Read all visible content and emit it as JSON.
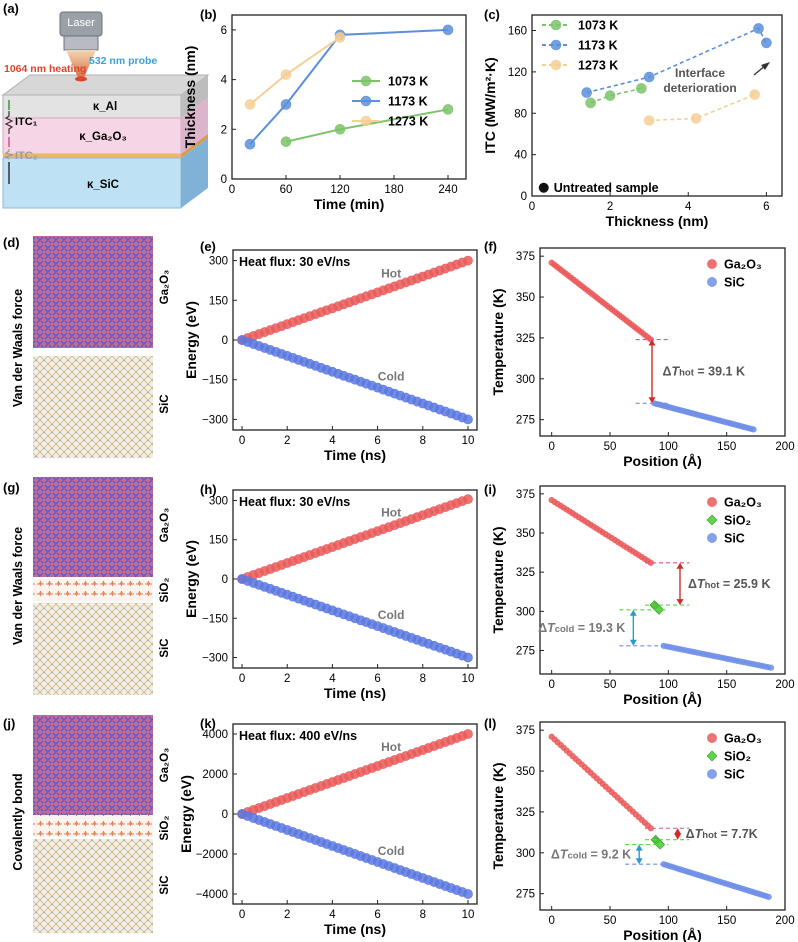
{
  "panels": {
    "a": {
      "tag": "(a)",
      "laser": "Laser",
      "heating": "1064 nm heating",
      "probe": "532 nm probe",
      "k_al": "κ_Al",
      "k_ga2o3": "κ_Ga₂O₃",
      "k_sic": "κ_SiC",
      "itc1": "ITC₁",
      "itc2": "ITC₂"
    },
    "d": {
      "tag": "(d)",
      "side": "Van der Waals force",
      "top": "Ga₂O₃",
      "bottom": "SiC"
    },
    "g": {
      "tag": "(g)",
      "side": "Van der Waals force",
      "top": "Ga₂O₃",
      "mid": "SiO₂",
      "bottom": "SiC"
    },
    "j": {
      "tag": "(j)",
      "side": "Covalently bond",
      "top": "Ga₂O₃",
      "mid": "SiO₂",
      "bottom": "SiC"
    },
    "b_tag": "(b)",
    "c_tag": "(c)",
    "e_tag": "(e)",
    "f_tag": "(f)",
    "h_tag": "(h)",
    "i_tag": "(i)",
    "k_tag": "(k)",
    "l_tag": "(l)"
  },
  "chart_data": [
    {
      "id": "b",
      "type": "line",
      "xlabel": "Time (min)",
      "ylabel": "Thickness (nm)",
      "xlim": [
        0,
        260
      ],
      "ylim": [
        0,
        6.6
      ],
      "xticks": [
        0,
        60,
        120,
        180,
        240
      ],
      "yticks": [
        0,
        2,
        4,
        6
      ],
      "legend": "center-right",
      "series": [
        {
          "name": "1073 K",
          "color": "#7cc36a",
          "x": [
            60,
            120,
            240
          ],
          "y": [
            1.5,
            2.0,
            2.8
          ]
        },
        {
          "name": "1173 K",
          "color": "#5b8fd9",
          "x": [
            20,
            60,
            120,
            240
          ],
          "y": [
            1.4,
            3.0,
            5.8,
            6.0
          ]
        },
        {
          "name": "1273 K",
          "color": "#f6cf97",
          "x": [
            20,
            60,
            120
          ],
          "y": [
            3.0,
            4.2,
            5.7
          ]
        }
      ]
    },
    {
      "id": "c",
      "type": "scatter",
      "xlabel": "Thickness (nm)",
      "ylabel": "ITC (MW/m²·K)",
      "xlim": [
        0,
        6.4
      ],
      "ylim": [
        0,
        175
      ],
      "xticks": [
        0,
        2,
        4,
        6
      ],
      "yticks": [
        0,
        40,
        80,
        120,
        160
      ],
      "legend": "top-left",
      "annotation": [
        "Interface",
        "deterioration"
      ],
      "untreated_label": "Untreated sample",
      "untreated_point": [
        0.3,
        8
      ],
      "series": [
        {
          "name": "1073 K",
          "color": "#7cc36a",
          "x": [
            1.5,
            2.0,
            2.8
          ],
          "y": [
            90,
            97,
            104
          ]
        },
        {
          "name": "1173 K",
          "color": "#5b8fd9",
          "x": [
            1.4,
            3.0,
            5.8,
            6.0
          ],
          "y": [
            100,
            115,
            162,
            148
          ]
        },
        {
          "name": "1273 K",
          "color": "#f6cf97",
          "x": [
            3.0,
            4.2,
            5.7
          ],
          "y": [
            73,
            75,
            98
          ]
        }
      ]
    },
    {
      "id": "e",
      "type": "scatter",
      "xlabel": "Time (ns)",
      "ylabel": "Energy (eV)",
      "xlim": [
        -0.4,
        10.4
      ],
      "ylim": [
        -340,
        340
      ],
      "xticks": [
        0,
        2,
        4,
        6,
        8,
        10
      ],
      "yticks": [
        -300,
        -150,
        0,
        150,
        300
      ],
      "title": "Heat flux: 30 eV/ns",
      "series": [
        {
          "name": "Hot",
          "color": "#ea5a5a",
          "x0": 0,
          "x1": 10,
          "y0": 0,
          "y1": 300,
          "n": 41
        },
        {
          "name": "Cold",
          "color": "#5b78e0",
          "x0": 0,
          "x1": 10,
          "y0": 0,
          "y1": -300,
          "n": 41
        }
      ]
    },
    {
      "id": "f",
      "type": "scatter",
      "xlabel": "Position (Å)",
      "ylabel": "Temperature (K)",
      "xlim": [
        -10,
        200
      ],
      "ylim": [
        265,
        380
      ],
      "xticks": [
        0,
        50,
        100,
        150,
        200
      ],
      "yticks": [
        275,
        300,
        325,
        350,
        375
      ],
      "legend": "top-right",
      "series": [
        {
          "name": "Ga₂O₃",
          "color": "#ea5a5a",
          "x0": 0,
          "x1": 85,
          "y0": 371,
          "y1": 324,
          "n": 42
        },
        {
          "name": "SiC",
          "color": "#6f8fe8",
          "x0": 88,
          "x1": 173,
          "y0": 285,
          "y1": 269,
          "n": 42
        }
      ],
      "delta_hot": "39.1 K"
    },
    {
      "id": "h",
      "type": "scatter",
      "xlabel": "Time (ns)",
      "ylabel": "Energy (eV)",
      "xlim": [
        -0.4,
        10.4
      ],
      "ylim": [
        -340,
        340
      ],
      "xticks": [
        0,
        2,
        4,
        6,
        8,
        10
      ],
      "yticks": [
        -300,
        -150,
        0,
        150,
        300
      ],
      "title": "Heat flux: 30 eV/ns",
      "series": [
        {
          "name": "Hot",
          "color": "#ea5a5a",
          "x0": 0,
          "x1": 10,
          "y0": 0,
          "y1": 305,
          "n": 41
        },
        {
          "name": "Cold",
          "color": "#5b78e0",
          "x0": 0,
          "x1": 10,
          "y0": 0,
          "y1": -300,
          "n": 41
        }
      ]
    },
    {
      "id": "i",
      "type": "scatter",
      "xlabel": "Position (Å)",
      "ylabel": "Temperature (K)",
      "xlim": [
        -10,
        200
      ],
      "ylim": [
        260,
        380
      ],
      "xticks": [
        0,
        50,
        100,
        150,
        200
      ],
      "yticks": [
        275,
        300,
        325,
        350,
        375
      ],
      "legend": "top-right",
      "series": [
        {
          "name": "Ga₂O₃",
          "color": "#ea5a5a",
          "x0": 0,
          "x1": 85,
          "y0": 371,
          "y1": 331,
          "n": 34
        },
        {
          "name": "SiO₂",
          "color": "#5fd44a",
          "x0": 88,
          "x1": 92,
          "y0": 304,
          "y1": 301,
          "n": 5,
          "marker": "diamond"
        },
        {
          "name": "SiC",
          "color": "#6f8fe8",
          "x0": 96,
          "x1": 188,
          "y0": 278,
          "y1": 264,
          "n": 36
        }
      ],
      "delta_hot": "25.9 K",
      "delta_cold": "19.3 K"
    },
    {
      "id": "k",
      "type": "scatter",
      "xlabel": "Time (ns)",
      "ylabel": "Energy (eV)",
      "xlim": [
        -0.4,
        10.4
      ],
      "ylim": [
        -4500,
        4500
      ],
      "xticks": [
        0,
        2,
        4,
        6,
        8,
        10
      ],
      "yticks": [
        -4000,
        -2000,
        0,
        2000,
        4000
      ],
      "title": "Heat flux: 400 eV/ns",
      "series": [
        {
          "name": "Hot",
          "color": "#ea5a5a",
          "x0": 0,
          "x1": 10,
          "y0": 0,
          "y1": 4000,
          "n": 41
        },
        {
          "name": "Cold",
          "color": "#5b78e0",
          "x0": 0,
          "x1": 10,
          "y0": 0,
          "y1": -4000,
          "n": 41
        }
      ]
    },
    {
      "id": "l",
      "type": "scatter",
      "xlabel": "Position (Å)",
      "ylabel": "Temperature (K)",
      "xlim": [
        -10,
        200
      ],
      "ylim": [
        265,
        380
      ],
      "xticks": [
        0,
        50,
        100,
        150,
        200
      ],
      "yticks": [
        275,
        300,
        325,
        350,
        375
      ],
      "legend": "top-right",
      "series": [
        {
          "name": "Ga₂O₃",
          "color": "#ea5a5a",
          "x0": 0,
          "x1": 85,
          "y0": 371,
          "y1": 315,
          "n": 34
        },
        {
          "name": "SiO₂",
          "color": "#5fd44a",
          "x0": 89,
          "x1": 93,
          "y0": 308,
          "y1": 305,
          "n": 5,
          "marker": "diamond"
        },
        {
          "name": "SiC",
          "color": "#6f8fe8",
          "x0": 96,
          "x1": 186,
          "y0": 293,
          "y1": 273,
          "n": 40
        }
      ],
      "delta_hot": "7.7K",
      "delta_cold": "9.2 K"
    }
  ]
}
